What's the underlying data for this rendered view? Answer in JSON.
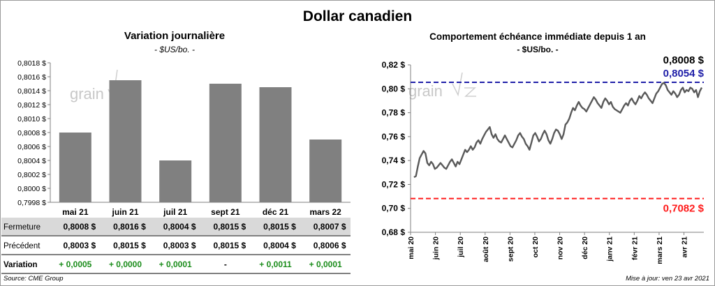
{
  "title": "Dollar canadien",
  "source": "Source: CME Group",
  "updated": "Mise à jour: ven 23 avr 2021",
  "watermark": "grain",
  "colors": {
    "bar": "#808080",
    "line": "#595959",
    "high": "#1f1fa8",
    "low": "#ff1a1a",
    "positive": "#1a8c1a",
    "row_shade": "#d9d9d9"
  },
  "chart_data": [
    {
      "type": "bar",
      "title": "Variation  journalière",
      "subtitle": "- $US/bo. -",
      "categories": [
        "mai 21",
        "juin 21",
        "juil 21",
        "sept 21",
        "déc 21",
        "mars 22"
      ],
      "values": [
        0.8008,
        0.80155,
        0.8004,
        0.8015,
        0.80145,
        0.8007
      ],
      "ylim": [
        0.7998,
        0.8018
      ],
      "yticks": [
        "0,7998 $",
        "0,8000 $",
        "0,8002 $",
        "0,8004 $",
        "0,8006 $",
        "0,8008 $",
        "0,8010 $",
        "0,8012 $",
        "0,8014 $",
        "0,8016 $",
        "0,8018 $"
      ],
      "table": {
        "rows": [
          {
            "label": "Fermeture",
            "values": [
              "0,8008 $",
              "0,8016 $",
              "0,8004 $",
              "0,8015 $",
              "0,8015 $",
              "0,8007 $"
            ]
          },
          {
            "label": "Précédent",
            "values": [
              "0,8003 $",
              "0,8015 $",
              "0,8003 $",
              "0,8015 $",
              "0,8004 $",
              "0,8006 $"
            ]
          },
          {
            "label": "Variation",
            "values": [
              "+ 0,0005",
              "+ 0,0000",
              "+ 0,0001",
              "-",
              "+ 0,0011",
              "+ 0,0001"
            ]
          }
        ]
      }
    },
    {
      "type": "line",
      "title": "Comportement échéance immédiate depuis 1 an",
      "subtitle": "- $US/bo. -",
      "ylim": [
        0.68,
        0.82
      ],
      "yticks": [
        "0,68 $",
        "0,70 $",
        "0,72 $",
        "0,74 $",
        "0,76 $",
        "0,78 $",
        "0,80 $",
        "0,82 $"
      ],
      "xticks": [
        "mai 20",
        "juin 20",
        "juil 20",
        "août 20",
        "sept 20",
        "oct 20",
        "nov 20",
        "déc 20",
        "janv 21",
        "févr 21",
        "mars 21",
        "avr 21"
      ],
      "last_value": "0,8008 $",
      "high": {
        "value": 0.8054,
        "label": "0,8054 $"
      },
      "low": {
        "value": 0.7082,
        "label": "0,7082 $"
      },
      "series": [
        {
          "values": [
            0.726,
            0.727,
            0.735,
            0.742,
            0.745,
            0.748,
            0.746,
            0.738,
            0.736,
            0.739,
            0.737,
            0.733,
            0.734,
            0.736,
            0.738,
            0.736,
            0.734,
            0.733,
            0.736,
            0.739,
            0.741,
            0.738,
            0.735,
            0.739,
            0.737,
            0.741,
            0.745,
            0.749,
            0.747,
            0.749,
            0.752,
            0.749,
            0.751,
            0.755,
            0.757,
            0.754,
            0.758,
            0.761,
            0.764,
            0.766,
            0.768,
            0.762,
            0.759,
            0.762,
            0.758,
            0.756,
            0.755,
            0.758,
            0.761,
            0.758,
            0.755,
            0.752,
            0.751,
            0.754,
            0.757,
            0.761,
            0.763,
            0.76,
            0.758,
            0.754,
            0.752,
            0.749,
            0.755,
            0.761,
            0.763,
            0.76,
            0.756,
            0.758,
            0.762,
            0.765,
            0.762,
            0.757,
            0.754,
            0.758,
            0.763,
            0.766,
            0.765,
            0.762,
            0.758,
            0.762,
            0.77,
            0.772,
            0.775,
            0.78,
            0.784,
            0.782,
            0.786,
            0.789,
            0.786,
            0.784,
            0.783,
            0.781,
            0.784,
            0.787,
            0.79,
            0.793,
            0.791,
            0.788,
            0.786,
            0.784,
            0.789,
            0.792,
            0.79,
            0.787,
            0.789,
            0.785,
            0.783,
            0.782,
            0.781,
            0.78,
            0.783,
            0.786,
            0.788,
            0.786,
            0.79,
            0.792,
            0.789,
            0.787,
            0.79,
            0.794,
            0.792,
            0.795,
            0.797,
            0.795,
            0.792,
            0.79,
            0.788,
            0.792,
            0.796,
            0.798,
            0.801,
            0.804,
            0.805,
            0.803,
            0.799,
            0.797,
            0.795,
            0.798,
            0.796,
            0.793,
            0.795,
            0.799,
            0.801,
            0.797,
            0.799,
            0.798,
            0.801,
            0.8,
            0.797,
            0.799,
            0.793,
            0.798,
            0.801
          ]
        }
      ]
    }
  ]
}
